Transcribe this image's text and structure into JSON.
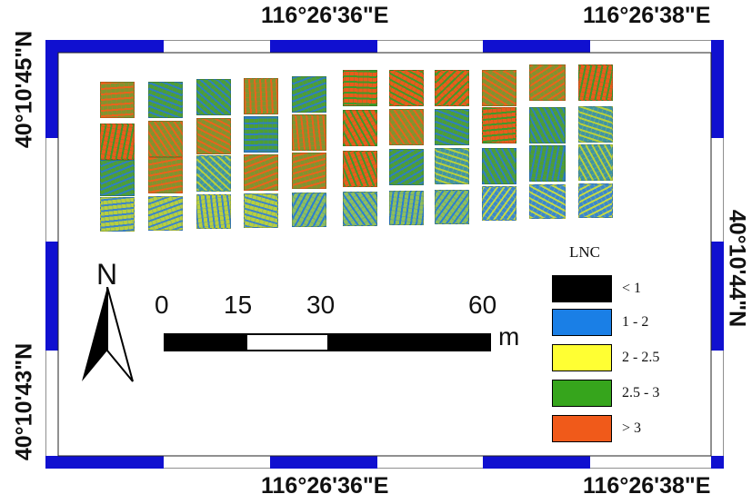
{
  "coords": {
    "top_left": "116°26'36\"E",
    "top_right": "116°26'38\"E",
    "bottom_left": "116°26'36\"E",
    "bottom_right": "116°26'38\"E",
    "left_top": "40°10'45\"N",
    "left_bottom": "40°10'43\"N",
    "right": "40°10'44\"N"
  },
  "north": {
    "label": "N"
  },
  "scale": {
    "ticks": [
      "0",
      "15",
      "30",
      "60"
    ],
    "unit": "m"
  },
  "legend": {
    "title": "LNC",
    "items": [
      {
        "label": "< 1",
        "color": "#000000"
      },
      {
        "label": "1 - 2",
        "color": "#1a7fe6"
      },
      {
        "label": "2 - 2.5",
        "color": "#ffff33"
      },
      {
        "label": "2.5 - 3",
        "color": "#36a51c"
      },
      {
        "label": "> 3",
        "color": "#f05a1a"
      }
    ]
  },
  "plots": [
    [
      "mix-og",
      "mix-g",
      "mix-g",
      "mix-og",
      "mix-g",
      "orange",
      "orange",
      "orange",
      "mix-og",
      "mix-og",
      "orange"
    ],
    [
      "orange",
      "mix-og",
      "mix-og",
      "mix-g",
      "mix-og",
      "orange",
      "mix-og",
      "mix-g",
      "orange",
      "mix-g",
      "mix-b"
    ],
    [
      "mix-g",
      "mix-og",
      "mix-b",
      "mix-og",
      "mix-og",
      "orange",
      "mix-g",
      "mix-b",
      "mix-g",
      "mix-g",
      "mix-b"
    ],
    [
      "mix-y",
      "mix-y",
      "mix-y",
      "mix-y",
      "mix-yb",
      "mix-yb",
      "mix-yb",
      "mix-yb",
      "blue",
      "blue",
      "blue"
    ]
  ],
  "plot_styles": {
    "orange": {
      "base": "#ec5a1c",
      "accent": "#3f9a2a"
    },
    "mix-og": {
      "base": "#7e9530",
      "accent": "#e9631c"
    },
    "mix-g": {
      "base": "#4f9f32",
      "accent": "#2e7fc0"
    },
    "mix-b": {
      "base": "#3f93a6",
      "accent": "#b8d03a"
    },
    "mix-y": {
      "base": "#b9cf3c",
      "accent": "#3d86c8"
    },
    "mix-yb": {
      "base": "#8fbf5a",
      "accent": "#2c7fd0"
    },
    "blue": {
      "base": "#3a87cf",
      "accent": "#c3d845"
    }
  }
}
